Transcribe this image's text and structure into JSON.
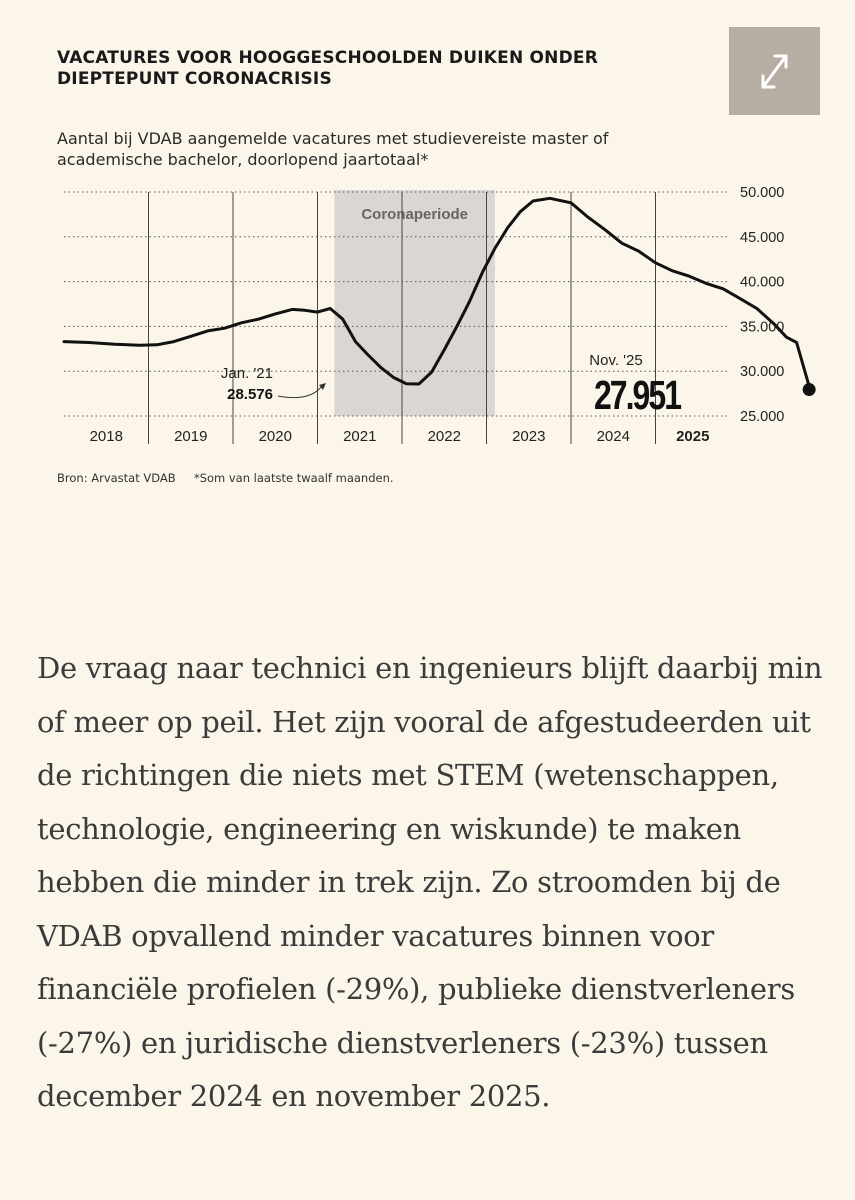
{
  "chart_data": {
    "type": "line",
    "title": "VACATURES VOOR HOOGGESCHOOLDEN DUIKEN ONDER DIEPTEPUNT CORONACRISIS",
    "subtitle": "Aantal bij VDAB aangemelde vacatures met studievereiste master of academische bachelor, doorlopend jaartotaal*",
    "xlabel": "",
    "ylabel": "",
    "ylim": [
      25000,
      50000
    ],
    "y_ticks": [
      "50.000",
      "45.000",
      "40.000",
      "35.000",
      "30.000",
      "25.000"
    ],
    "y_tick_values": [
      50000,
      45000,
      40000,
      35000,
      30000,
      25000
    ],
    "x_ticks": [
      "2018",
      "2019",
      "2020",
      "2021",
      "2022",
      "2023",
      "2024",
      "2025"
    ],
    "shaded_region": {
      "label": "Coronaperiode",
      "start": 2020.2,
      "end": 2022.1
    },
    "series": [
      {
        "name": "Vacatures",
        "x": [
          2017.0,
          2017.3,
          2017.6,
          2017.9,
          2018.1,
          2018.3,
          2018.5,
          2018.7,
          2018.9,
          2019.1,
          2019.3,
          2019.5,
          2019.7,
          2019.85,
          2020.0,
          2020.15,
          2020.3,
          2020.45,
          2020.6,
          2020.75,
          2020.9,
          2021.05,
          2021.2,
          2021.35,
          2021.5,
          2021.65,
          2021.8,
          2021.95,
          2022.1,
          2022.25,
          2022.4,
          2022.55,
          2022.75,
          2023.0,
          2023.2,
          2023.4,
          2023.6,
          2023.8,
          2024.0,
          2024.2,
          2024.4,
          2024.6,
          2024.8,
          2025.0,
          2025.2,
          2025.4,
          2025.55,
          2025.67,
          2025.83
        ],
        "values": [
          33300,
          33200,
          33000,
          32900,
          32950,
          33300,
          33900,
          34500,
          34800,
          35400,
          35800,
          36400,
          36900,
          36800,
          36600,
          37000,
          35800,
          33300,
          31800,
          30400,
          29300,
          28600,
          28576,
          29900,
          32400,
          35000,
          37800,
          41000,
          43700,
          46000,
          47800,
          49000,
          49300,
          48800,
          47200,
          45800,
          44300,
          43400,
          42100,
          41200,
          40600,
          39800,
          39200,
          38100,
          37000,
          35300,
          33800,
          33200,
          27951
        ]
      }
    ],
    "annotations": [
      {
        "label": "Jan. '21",
        "value_text": "28.576",
        "x": 2021.2,
        "y": 28576
      },
      {
        "label": "Nov. '25",
        "value_text": "27.951",
        "x": 2025.83,
        "y": 27951
      }
    ]
  },
  "ui": {
    "expand_icon": "expand-arrows-icon"
  },
  "footer": {
    "source": "Bron: Arvastat VDAB",
    "note": "*Som van laatste twaalf maanden."
  },
  "article": {
    "paragraph": "De vraag naar technici en ingenieurs blijft daarbij min of meer op peil. Het zijn vooral de afgestudeerden uit de richtingen die niets met STEM (wetenschappen, technologie, engineering en wiskunde) te maken hebben die minder in trek zijn. Zo stroomden bij de VDAB opvallend minder vacatures binnen voor financiële profielen (-29%), publieke dienstverleners (-27%) en juridische dienstverleners (-23%) tussen december 2024 en november 2025."
  },
  "colors": {
    "background": "#fcf6ea",
    "shade": "#d9d6d3",
    "line": "#111111",
    "expand_bg": "#b7aea3",
    "text": "#1a1a1a",
    "article_text": "#3b3b3b"
  }
}
